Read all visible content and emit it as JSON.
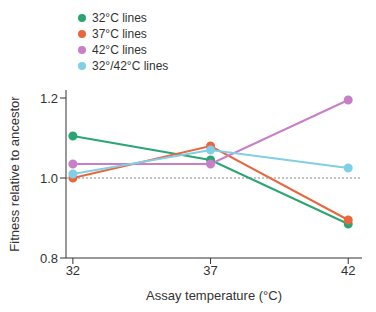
{
  "chart_data": {
    "type": "line",
    "x_label": "Assay temperature (°C)",
    "y_label": "Fitness relative to ancestor",
    "x": [
      32,
      37,
      42
    ],
    "xlim": [
      31.75,
      42.5
    ],
    "xticks": [
      32,
      37,
      42
    ],
    "ylim": [
      0.8,
      1.22
    ],
    "yticks": [
      {
        "value": 0.8,
        "label": "0.8"
      },
      {
        "value": 1.0,
        "label": "1.0"
      },
      {
        "value": 1.2,
        "label": "1.2"
      }
    ],
    "reference_line": 1,
    "legend": "upper left",
    "marker": "circle",
    "series": [
      {
        "name": "32°C lines",
        "color": "#2ba572",
        "values": [
          1.105,
          1.045,
          0.885
        ]
      },
      {
        "name": "37°C lines",
        "color": "#e8673e",
        "values": [
          1.0,
          1.08,
          0.895
        ]
      },
      {
        "name": "42°C lines",
        "color": "#c97fc8",
        "values": [
          1.035,
          1.035,
          1.195
        ]
      },
      {
        "name": "32°/42°C lines",
        "color": "#80cfe6",
        "values": [
          1.01,
          1.07,
          1.025
        ]
      }
    ]
  }
}
